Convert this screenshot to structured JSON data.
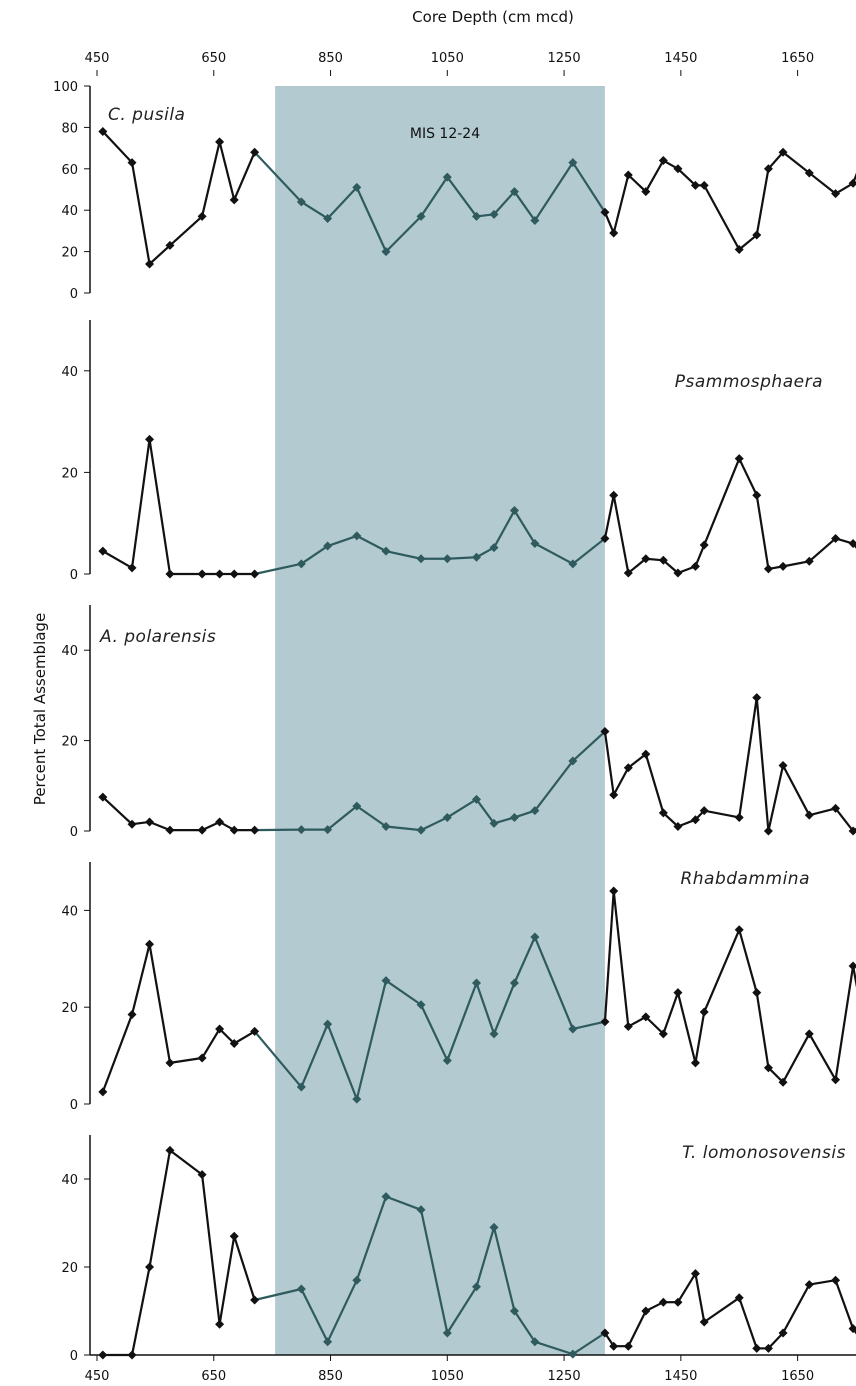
{
  "chart_data": {
    "type": "line",
    "xlabel": "Core Depth (cm mcd)",
    "ylabel": "Percent Total Assemblage",
    "x_ticks": [
      450,
      650,
      850,
      1050,
      1250,
      1450,
      1650
    ],
    "xlim": [
      450,
      1780
    ],
    "shaded_region": {
      "label": "MIS 12-24",
      "x_range": [
        755,
        1320
      ],
      "color": "#b3cbd0"
    },
    "colors": {
      "line": "#111111",
      "line_in_band": "#2f5b5e",
      "axis": "#111111"
    },
    "panels": [
      {
        "name": "C. pusila",
        "y_ticks": [
          0,
          20,
          40,
          60,
          80,
          100
        ],
        "ylim": [
          0,
          100
        ],
        "x": [
          460,
          510,
          540,
          575,
          630,
          660,
          685,
          720,
          800,
          845,
          895,
          945,
          1005,
          1050,
          1100,
          1130,
          1165,
          1200,
          1265,
          1320,
          1335,
          1360,
          1390,
          1420,
          1445,
          1475,
          1490,
          1550,
          1580,
          1600,
          1625,
          1670,
          1715,
          1745,
          1775
        ],
        "values": [
          78,
          63,
          14,
          23,
          37,
          73,
          45,
          68,
          44,
          36,
          51,
          20,
          37,
          56,
          37,
          38,
          49,
          35,
          63,
          39,
          29,
          57,
          49,
          64,
          60,
          52,
          52,
          21,
          28,
          60,
          68,
          58,
          48,
          53,
          75
        ]
      },
      {
        "name": "Psammosphaera",
        "y_ticks": [
          0,
          20,
          40
        ],
        "ylim": [
          0,
          50
        ],
        "x": [
          460,
          510,
          540,
          575,
          630,
          660,
          685,
          720,
          800,
          845,
          895,
          945,
          1005,
          1050,
          1100,
          1130,
          1165,
          1200,
          1265,
          1320,
          1335,
          1360,
          1390,
          1420,
          1445,
          1475,
          1490,
          1550,
          1580,
          1600,
          1625,
          1670,
          1715,
          1745,
          1775
        ],
        "values": [
          4.5,
          1.2,
          26.5,
          0,
          0,
          0,
          0,
          0,
          2,
          5.5,
          7.5,
          4.5,
          3,
          3,
          3.3,
          5.2,
          12.5,
          6,
          2,
          7,
          15.5,
          0.2,
          3,
          2.7,
          0.2,
          1.5,
          5.7,
          22.7,
          15.5,
          1,
          1.5,
          2.5,
          7,
          6,
          1.8
        ]
      },
      {
        "name": "A. polarensis",
        "y_ticks": [
          0,
          20,
          40
        ],
        "ylim": [
          0,
          50
        ],
        "x": [
          460,
          510,
          540,
          575,
          630,
          660,
          685,
          720,
          800,
          845,
          895,
          945,
          1005,
          1050,
          1100,
          1130,
          1165,
          1200,
          1265,
          1320,
          1335,
          1360,
          1390,
          1420,
          1445,
          1475,
          1490,
          1550,
          1580,
          1600,
          1625,
          1670,
          1715,
          1745,
          1775
        ],
        "values": [
          7.5,
          1.5,
          2,
          0.2,
          0.2,
          2,
          0.2,
          0.2,
          0.3,
          0.3,
          5.5,
          1,
          0.2,
          3,
          7,
          1.7,
          3,
          4.5,
          15.5,
          22,
          8,
          14,
          17,
          4,
          1,
          2.5,
          4.5,
          3,
          29.5,
          0,
          14.5,
          3.5,
          5,
          0,
          2.5
        ]
      },
      {
        "name": "Rhabdammina",
        "y_ticks": [
          0,
          20,
          40
        ],
        "ylim": [
          0,
          50
        ],
        "x": [
          460,
          510,
          540,
          575,
          630,
          660,
          685,
          720,
          800,
          845,
          895,
          945,
          1005,
          1050,
          1100,
          1130,
          1165,
          1200,
          1265,
          1320,
          1335,
          1360,
          1390,
          1420,
          1445,
          1475,
          1490,
          1550,
          1580,
          1600,
          1625,
          1670,
          1715,
          1745,
          1775
        ],
        "values": [
          2.5,
          18.5,
          33,
          8.5,
          9.5,
          15.5,
          12.5,
          15,
          3.5,
          16.5,
          1,
          25.5,
          20.5,
          9,
          25,
          14.5,
          25,
          34.5,
          15.5,
          17,
          44,
          16,
          18,
          14.5,
          23,
          8.5,
          19,
          36,
          23,
          7.5,
          4.5,
          14.5,
          5,
          28.5,
          9
        ]
      },
      {
        "name": "T. lomonosovensis",
        "y_ticks": [
          0,
          20,
          40
        ],
        "ylim": [
          0,
          50
        ],
        "x": [
          460,
          510,
          540,
          575,
          630,
          660,
          685,
          720,
          800,
          845,
          895,
          945,
          1005,
          1050,
          1100,
          1130,
          1165,
          1200,
          1265,
          1320,
          1335,
          1360,
          1390,
          1420,
          1445,
          1475,
          1490,
          1550,
          1580,
          1600,
          1625,
          1670,
          1715,
          1745,
          1775
        ],
        "values": [
          0,
          0,
          20,
          46.5,
          41,
          7,
          27,
          12.5,
          15,
          3,
          17,
          36,
          33,
          5,
          15.5,
          29,
          10,
          3,
          0.2,
          5,
          2,
          2,
          10,
          12,
          12,
          18.5,
          7.5,
          13,
          1.5,
          1.5,
          5,
          16,
          17,
          6,
          0.5
        ]
      }
    ]
  }
}
